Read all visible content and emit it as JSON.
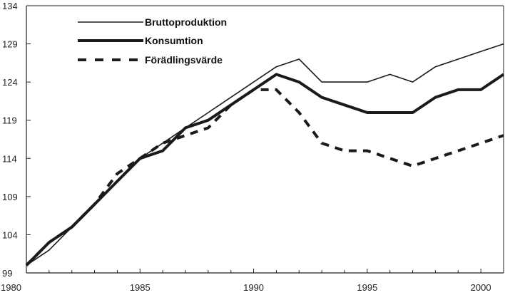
{
  "chart_data": {
    "type": "line",
    "title": "",
    "xlabel": "",
    "ylabel": "",
    "xlim": [
      1980,
      2001
    ],
    "ylim": [
      99,
      134
    ],
    "x_ticks": [
      1980,
      1985,
      1990,
      1995,
      2000
    ],
    "x_tick_labels": [
      "1980",
      "1985",
      "1990",
      "1995",
      "2000"
    ],
    "y_ticks": [
      99,
      104,
      109,
      114,
      119,
      124,
      129,
      134
    ],
    "y_tick_labels": [
      "99",
      "104",
      "109",
      "114",
      "119",
      "124",
      "129",
      "134"
    ],
    "grid": false,
    "legend_position": "top-left",
    "series": [
      {
        "name": "Bruttoproduktion",
        "style": "thin-solid",
        "color": "#1a1a1a",
        "x": [
          1980,
          1981,
          1982,
          1983,
          1984,
          1985,
          1986,
          1987,
          1988,
          1989,
          1990,
          1991,
          1992,
          1993,
          1994,
          1995,
          1996,
          1997,
          1998,
          1999,
          2000,
          2001
        ],
        "values": [
          100,
          102,
          105,
          108,
          111,
          114,
          116,
          118,
          120,
          122,
          124,
          126,
          127,
          124,
          124,
          124,
          125,
          124,
          126,
          127,
          128,
          129
        ]
      },
      {
        "name": "Konsumtion",
        "style": "thick-solid",
        "color": "#1a1a1a",
        "x": [
          1980,
          1981,
          1982,
          1983,
          1984,
          1985,
          1986,
          1987,
          1988,
          1989,
          1990,
          1991,
          1992,
          1993,
          1994,
          1995,
          1996,
          1997,
          1998,
          1999,
          2000,
          2001
        ],
        "values": [
          100,
          103,
          105,
          108,
          111,
          114,
          115,
          118,
          119,
          121,
          123,
          125,
          124,
          122,
          121,
          120,
          120,
          120,
          122,
          123,
          123,
          125
        ]
      },
      {
        "name": "Förädlingsvärde",
        "style": "dashed",
        "color": "#1a1a1a",
        "x": [
          1980,
          1981,
          1982,
          1983,
          1984,
          1985,
          1986,
          1987,
          1988,
          1989,
          1990,
          1991,
          1992,
          1993,
          1994,
          1995,
          1996,
          1997,
          1998,
          1999,
          2000,
          2001
        ],
        "values": [
          100,
          103,
          105,
          108,
          112,
          114,
          116,
          117,
          118,
          121,
          123,
          123,
          120,
          116,
          115,
          115,
          114,
          113,
          114,
          115,
          116,
          117
        ]
      }
    ]
  }
}
